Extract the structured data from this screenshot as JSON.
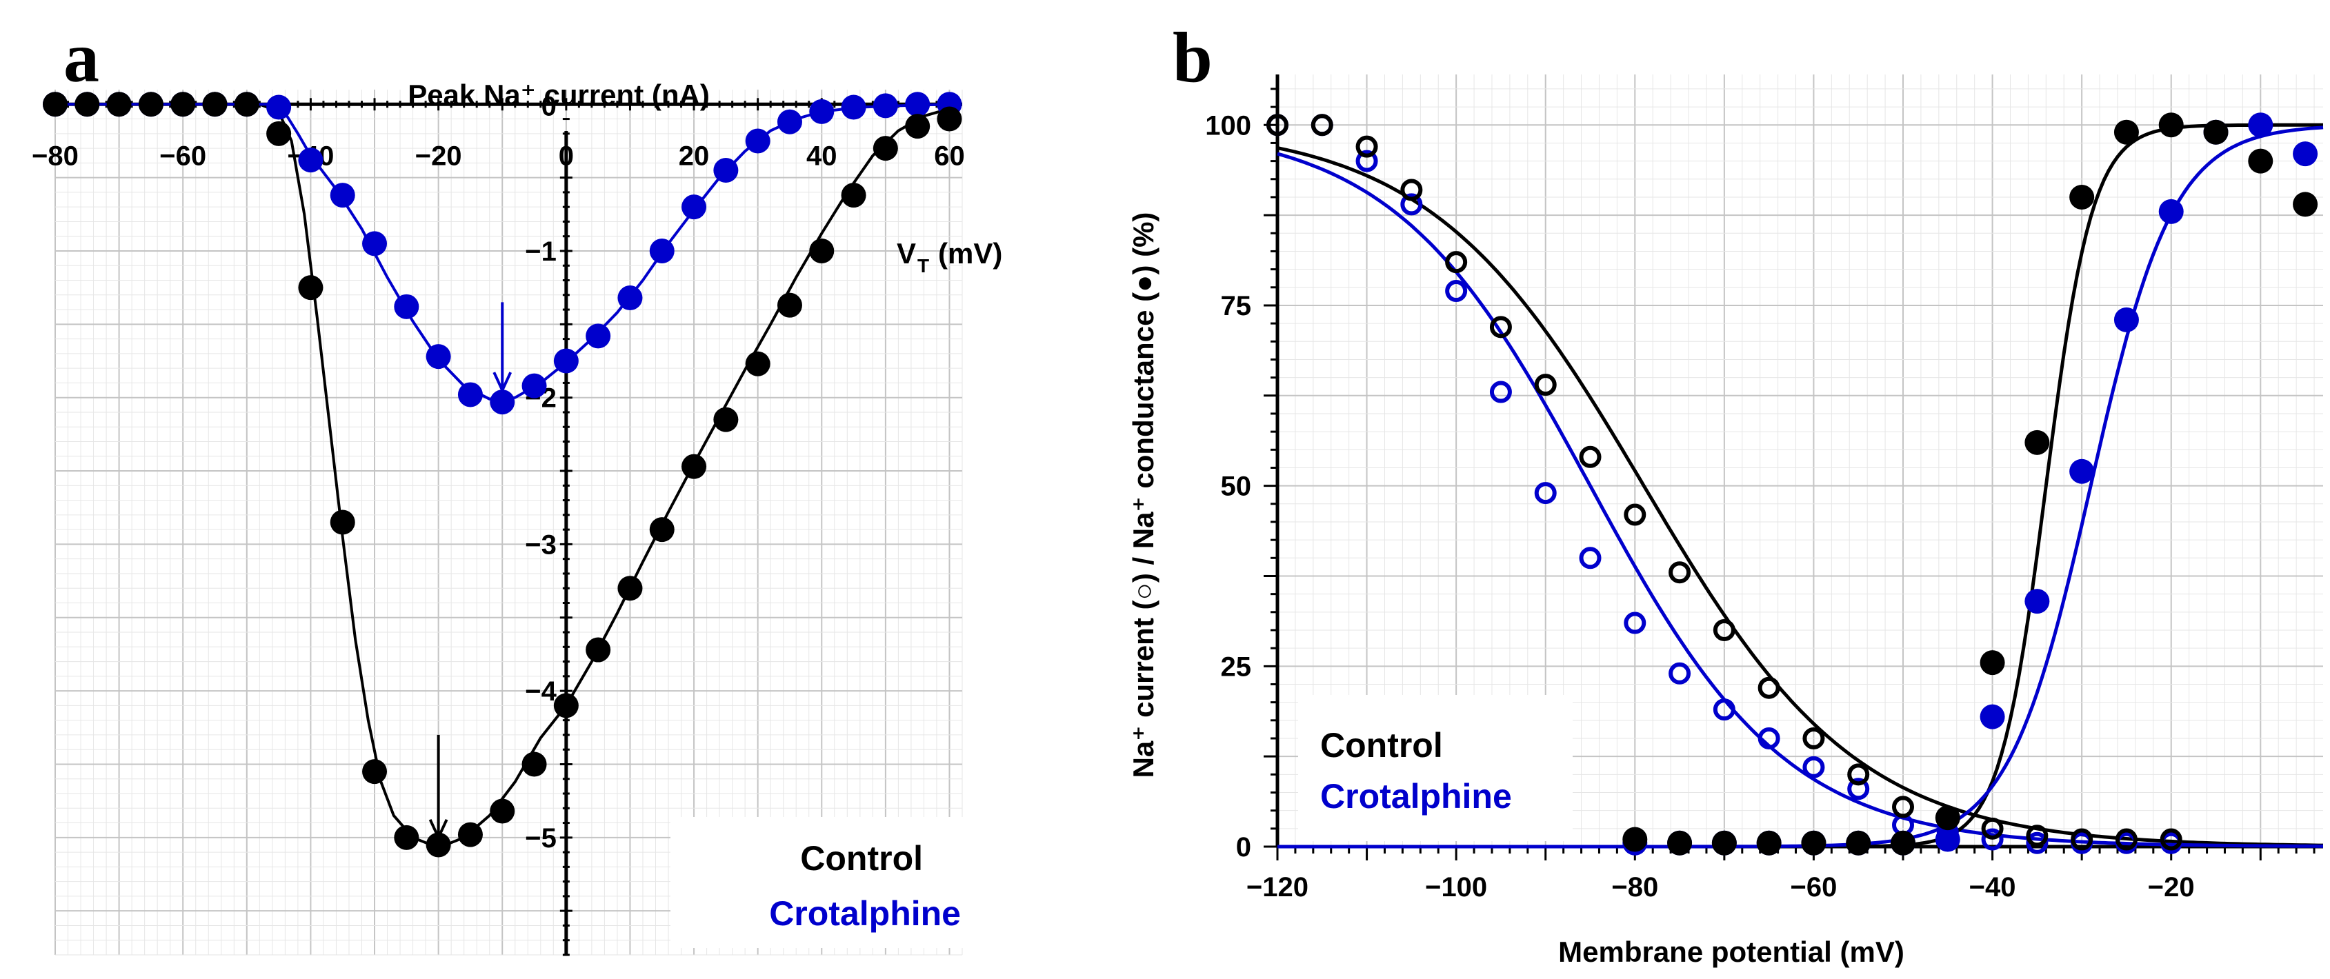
{
  "colors": {
    "control": "#000000",
    "crotalphine": "#0000cc",
    "grid": "#d0d0d0",
    "axis": "#000000"
  },
  "chart_data": [
    {
      "panel": "a",
      "type": "scatter",
      "title": "Peak Na⁺ current (nA)",
      "xlabel": "V_T (mV)",
      "xlabel_main": "V",
      "xlabel_sub": "T",
      "xlabel_unit": "(mV)",
      "ylabel": "Peak Na⁺ current (nA)",
      "xlim": [
        -80,
        62
      ],
      "ylim": [
        -5.8,
        0.1
      ],
      "xticks": [
        "−80",
        "−60",
        "−40",
        "−20",
        "0",
        "20",
        "40",
        "60"
      ],
      "xtick_values": [
        -80,
        -60,
        -40,
        -20,
        0,
        20,
        40,
        60
      ],
      "yticks": [
        "0",
        "−1",
        "−2",
        "−3",
        "−4",
        "−5"
      ],
      "ytick_values": [
        0,
        -1,
        -2,
        -3,
        -4,
        -5
      ],
      "arrows": [
        {
          "series": "Control",
          "x": -20,
          "y_from": -4.3,
          "y_to": -5.0
        },
        {
          "series": "Crotalphine",
          "x": -10,
          "y_from": -1.35,
          "y_to": -1.95
        }
      ],
      "legend": [
        "Control",
        "Crotalphine"
      ],
      "legend_position": "bottom-right",
      "series": [
        {
          "name": "Control",
          "x": [
            -80,
            -75,
            -70,
            -65,
            -60,
            -55,
            -50,
            -45,
            -40,
            -35,
            -30,
            -25,
            -20,
            -15,
            -10,
            -5,
            0,
            5,
            10,
            15,
            20,
            25,
            30,
            35,
            40,
            45,
            50,
            55,
            60
          ],
          "y": [
            0,
            0,
            0,
            0,
            0,
            0,
            0,
            -0.2,
            -1.25,
            -2.85,
            -4.55,
            -5.0,
            -5.05,
            -4.98,
            -4.82,
            -4.5,
            -4.1,
            -3.72,
            -3.3,
            -2.9,
            -2.47,
            -2.15,
            -1.77,
            -1.37,
            -1.0,
            -0.62,
            -0.3,
            -0.15,
            -0.1
          ],
          "fit": [
            [
              -80,
              0
            ],
            [
              -48,
              0
            ],
            [
              -45,
              -0.05
            ],
            [
              -43,
              -0.25
            ],
            [
              -41,
              -0.75
            ],
            [
              -39,
              -1.45
            ],
            [
              -37,
              -2.2
            ],
            [
              -35,
              -2.95
            ],
            [
              -33,
              -3.65
            ],
            [
              -31,
              -4.2
            ],
            [
              -29,
              -4.62
            ],
            [
              -27,
              -4.85
            ],
            [
              -24,
              -5.0
            ],
            [
              -20,
              -5.07
            ],
            [
              -16,
              -5.0
            ],
            [
              -12,
              -4.85
            ],
            [
              -8,
              -4.62
            ],
            [
              -4,
              -4.32
            ],
            [
              0,
              -4.1
            ],
            [
              4,
              -3.8
            ],
            [
              8,
              -3.47
            ],
            [
              12,
              -3.12
            ],
            [
              16,
              -2.78
            ],
            [
              20,
              -2.45
            ],
            [
              24,
              -2.13
            ],
            [
              28,
              -1.81
            ],
            [
              32,
              -1.5
            ],
            [
              36,
              -1.18
            ],
            [
              40,
              -0.88
            ],
            [
              44,
              -0.6
            ],
            [
              48,
              -0.35
            ],
            [
              52,
              -0.18
            ],
            [
              56,
              -0.08
            ],
            [
              60,
              -0.03
            ]
          ]
        },
        {
          "name": "Crotalphine",
          "x": [
            -80,
            -75,
            -70,
            -65,
            -60,
            -55,
            -50,
            -45,
            -40,
            -35,
            -30,
            -25,
            -20,
            -15,
            -10,
            -5,
            0,
            5,
            10,
            15,
            20,
            25,
            30,
            35,
            40,
            45,
            50,
            55,
            60
          ],
          "y": [
            0,
            0,
            0,
            0,
            0,
            0,
            0,
            -0.02,
            -0.38,
            -0.62,
            -0.95,
            -1.38,
            -1.72,
            -1.98,
            -2.03,
            -1.92,
            -1.75,
            -1.58,
            -1.32,
            -1.0,
            -0.7,
            -0.45,
            -0.25,
            -0.12,
            -0.05,
            -0.02,
            -0.01,
            0,
            0
          ],
          "fit": [
            [
              -80,
              0
            ],
            [
              -46,
              0
            ],
            [
              -44,
              -0.06
            ],
            [
              -42,
              -0.2
            ],
            [
              -40,
              -0.35
            ],
            [
              -36,
              -0.58
            ],
            [
              -32,
              -0.85
            ],
            [
              -28,
              -1.18
            ],
            [
              -24,
              -1.48
            ],
            [
              -20,
              -1.74
            ],
            [
              -16,
              -1.92
            ],
            [
              -12,
              -2.01
            ],
            [
              -8,
              -2.0
            ],
            [
              -4,
              -1.9
            ],
            [
              0,
              -1.76
            ],
            [
              4,
              -1.6
            ],
            [
              8,
              -1.42
            ],
            [
              12,
              -1.2
            ],
            [
              16,
              -0.95
            ],
            [
              20,
              -0.72
            ],
            [
              24,
              -0.5
            ],
            [
              28,
              -0.32
            ],
            [
              32,
              -0.18
            ],
            [
              36,
              -0.1
            ],
            [
              40,
              -0.05
            ],
            [
              46,
              -0.02
            ],
            [
              52,
              -0.01
            ],
            [
              60,
              0
            ]
          ]
        }
      ]
    },
    {
      "panel": "b",
      "type": "scatter",
      "xlabel": "Membrane potential  (mV)",
      "ylabel": "Na⁺ current (○) /  Na⁺ conductance (●) (%)",
      "xlim": [
        -120,
        -3
      ],
      "ylim": [
        0,
        107
      ],
      "xticks": [
        "−120",
        "−100",
        "−80",
        "−60",
        "−40",
        "−20"
      ],
      "xtick_values": [
        -120,
        -100,
        -80,
        -60,
        -40,
        -20
      ],
      "yticks": [
        "0",
        "25",
        "50",
        "75",
        "100"
      ],
      "ytick_values": [
        0,
        25,
        50,
        75,
        100
      ],
      "legend": [
        "Control",
        "Crotalphine"
      ],
      "legend_position": "bottom-left",
      "series": [
        {
          "name": "Control current",
          "marker": "open",
          "color_key": "control",
          "x": [
            -120,
            -115,
            -110,
            -105,
            -100,
            -95,
            -90,
            -85,
            -80,
            -75,
            -70,
            -65,
            -60,
            -55,
            -50,
            -45,
            -40,
            -35,
            -30,
            -25,
            -20
          ],
          "y": [
            100,
            100,
            97,
            91,
            81,
            72,
            64,
            54,
            46,
            38,
            30,
            22,
            15,
            10,
            5.5,
            4,
            2.5,
            1.5,
            1,
            1,
            1
          ]
        },
        {
          "name": "Crotalphine current",
          "marker": "open",
          "color_key": "crotalphine",
          "x": [
            -120,
            -115,
            -110,
            -105,
            -100,
            -95,
            -90,
            -85,
            -80,
            -75,
            -70,
            -65,
            -60,
            -55,
            -50,
            -45,
            -40,
            -35,
            -30,
            -25,
            -20
          ],
          "y": [
            100,
            100,
            95,
            89,
            77,
            63,
            49,
            40,
            31,
            24,
            19,
            15,
            11,
            8,
            3,
            2,
            1,
            0.5,
            0.5,
            0.5,
            0.5
          ]
        },
        {
          "name": "Control conductance",
          "marker": "filled",
          "color_key": "control",
          "x": [
            -80,
            -75,
            -70,
            -65,
            -60,
            -55,
            -50,
            -45,
            -40,
            -35,
            -30,
            -25,
            -20,
            -15,
            -10,
            -5
          ],
          "y": [
            1,
            0.5,
            0.5,
            0.5,
            0.5,
            0.5,
            0.5,
            4,
            25.5,
            56,
            90,
            99,
            100,
            99,
            95,
            89
          ]
        },
        {
          "name": "Crotalphine conductance",
          "marker": "filled",
          "color_key": "crotalphine",
          "x": [
            -80,
            -75,
            -70,
            -65,
            -60,
            -55,
            -50,
            -45,
            -40,
            -35,
            -30,
            -25,
            -20,
            -15,
            -10,
            -5
          ],
          "y": [
            0.5,
            0.5,
            0.5,
            0.5,
            0.5,
            0.5,
            0.5,
            1,
            18,
            34,
            52,
            73,
            88,
            99,
            100,
            96
          ]
        }
      ],
      "fits": [
        {
          "name": "Control inactivation fit",
          "color_key": "control",
          "type": "boltzmann_inact",
          "v_half": -79,
          "k": 12
        },
        {
          "name": "Crotalphine inactivation fit",
          "color_key": "crotalphine",
          "type": "boltzmann_inact",
          "v_half": -85,
          "k": 11
        },
        {
          "name": "Control activation fit",
          "color_key": "control",
          "type": "boltzmann_act",
          "v_half": -34,
          "k": 2.6
        },
        {
          "name": "Crotalphine activation fit",
          "color_key": "crotalphine",
          "type": "boltzmann_act",
          "v_half": -29,
          "k": 4.6
        }
      ]
    }
  ],
  "legend": {
    "control": "Control",
    "crotalphine": "Crotalphine"
  }
}
